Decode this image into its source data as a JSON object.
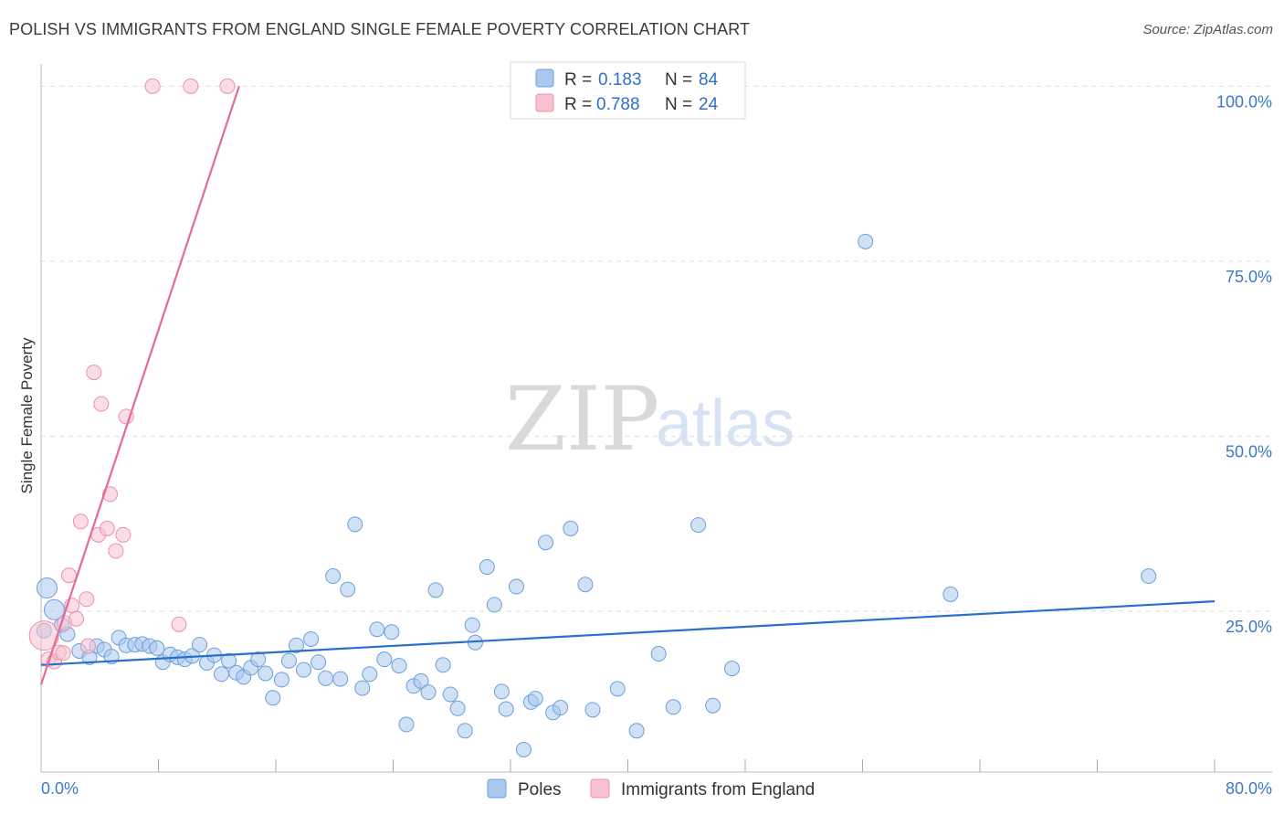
{
  "title": "POLISH VS IMMIGRANTS FROM ENGLAND SINGLE FEMALE POVERTY CORRELATION CHART",
  "source": "Source: ZipAtlas.com",
  "watermark": {
    "left": "ZIP",
    "right": "atlas"
  },
  "colors": {
    "poles_fill": "#aac8ee",
    "poles_stroke": "#6c9fd9",
    "poles_line": "#2a6fc8",
    "england_fill": "#f7c1d0",
    "england_stroke": "#ec8fab",
    "england_line": "#e8689a",
    "tick_text": "#3d79c8",
    "grid": "#dddddd"
  },
  "legend": {
    "rows": [
      {
        "r_label": "R =",
        "r_value": "0.183",
        "n_label": "N =",
        "n_value": "84"
      },
      {
        "r_label": "R =",
        "r_value": "0.788",
        "n_label": "N =",
        "n_value": "24"
      }
    ]
  },
  "bottom_legend": [
    "Poles",
    "Immigrants from England"
  ],
  "chart_data": {
    "type": "scatter",
    "title": "POLISH VS IMMIGRANTS FROM ENGLAND SINGLE FEMALE POVERTY CORRELATION CHART",
    "xlabel": "",
    "ylabel": "Single Female Poverty",
    "xlim": [
      0,
      80
    ],
    "ylim": [
      2,
      102
    ],
    "x_tick_labels": [
      "0.0%",
      "80.0%"
    ],
    "y_ticks": [
      25,
      50,
      75,
      100
    ],
    "y_tick_labels": [
      "25.0%",
      "50.0%",
      "75.0%",
      "100.0%"
    ],
    "grid": true,
    "series": [
      {
        "name": "Poles",
        "r": 0.183,
        "n": 84,
        "trend": [
          [
            0,
            17.3
          ],
          [
            80,
            26.4
          ]
        ],
        "points": [
          [
            0.4,
            28.3
          ],
          [
            0.9,
            25.2
          ],
          [
            1.4,
            23.0
          ],
          [
            1.8,
            21.7
          ],
          [
            2.6,
            19.3
          ],
          [
            3.3,
            18.4
          ],
          [
            3.8,
            20.0
          ],
          [
            4.3,
            19.5
          ],
          [
            4.8,
            18.5
          ],
          [
            5.3,
            21.2
          ],
          [
            5.8,
            20.1
          ],
          [
            6.4,
            20.2
          ],
          [
            6.9,
            20.3
          ],
          [
            7.4,
            20.0
          ],
          [
            7.9,
            19.7
          ],
          [
            8.3,
            17.7
          ],
          [
            8.8,
            18.8
          ],
          [
            9.3,
            18.4
          ],
          [
            9.8,
            18.1
          ],
          [
            10.3,
            18.6
          ],
          [
            10.8,
            20.2
          ],
          [
            11.3,
            17.6
          ],
          [
            11.8,
            18.7
          ],
          [
            12.3,
            16.0
          ],
          [
            12.8,
            17.9
          ],
          [
            13.3,
            16.2
          ],
          [
            13.8,
            15.6
          ],
          [
            14.3,
            16.9
          ],
          [
            14.8,
            18.1
          ],
          [
            15.3,
            16.1
          ],
          [
            15.8,
            12.6
          ],
          [
            16.4,
            15.2
          ],
          [
            16.9,
            17.9
          ],
          [
            17.4,
            20.1
          ],
          [
            17.9,
            16.6
          ],
          [
            18.4,
            21.0
          ],
          [
            18.9,
            17.7
          ],
          [
            19.4,
            15.4
          ],
          [
            19.9,
            30.0
          ],
          [
            20.4,
            15.3
          ],
          [
            20.9,
            28.1
          ],
          [
            21.4,
            37.4
          ],
          [
            21.9,
            14.0
          ],
          [
            22.4,
            16.0
          ],
          [
            22.9,
            22.4
          ],
          [
            23.4,
            18.1
          ],
          [
            23.9,
            22.0
          ],
          [
            24.4,
            17.2
          ],
          [
            24.9,
            8.8
          ],
          [
            25.4,
            14.3
          ],
          [
            25.9,
            15.0
          ],
          [
            26.4,
            13.4
          ],
          [
            26.9,
            28.0
          ],
          [
            27.4,
            17.3
          ],
          [
            27.9,
            13.1
          ],
          [
            28.4,
            11.1
          ],
          [
            28.9,
            7.9
          ],
          [
            29.4,
            23.0
          ],
          [
            29.6,
            20.5
          ],
          [
            30.4,
            31.3
          ],
          [
            30.9,
            25.9
          ],
          [
            31.4,
            13.5
          ],
          [
            31.7,
            11.0
          ],
          [
            32.4,
            28.5
          ],
          [
            32.9,
            5.2
          ],
          [
            33.4,
            12.0
          ],
          [
            33.7,
            12.5
          ],
          [
            34.4,
            34.8
          ],
          [
            34.9,
            10.5
          ],
          [
            35.4,
            11.2
          ],
          [
            36.1,
            36.8
          ],
          [
            37.1,
            28.8
          ],
          [
            37.6,
            10.9
          ],
          [
            39.3,
            13.9
          ],
          [
            40.6,
            7.9
          ],
          [
            42.1,
            18.9
          ],
          [
            43.1,
            11.3
          ],
          [
            44.8,
            37.3
          ],
          [
            45.8,
            11.5
          ],
          [
            47.1,
            16.8
          ],
          [
            56.2,
            77.8
          ],
          [
            62.0,
            27.4
          ],
          [
            75.5,
            30.0
          ],
          [
            0.2,
            22.2
          ]
        ]
      },
      {
        "name": "Immigrants from England",
        "r": 0.788,
        "n": 24,
        "trend": [
          [
            0,
            14.5
          ],
          [
            13.5,
            100
          ]
        ],
        "points": [
          [
            0.2,
            21.5
          ],
          [
            0.5,
            18.1
          ],
          [
            0.9,
            17.8
          ],
          [
            1.2,
            19.1
          ],
          [
            1.5,
            19.0
          ],
          [
            1.6,
            23.3
          ],
          [
            1.9,
            30.1
          ],
          [
            2.1,
            25.8
          ],
          [
            2.4,
            23.9
          ],
          [
            2.7,
            37.8
          ],
          [
            3.1,
            26.7
          ],
          [
            3.2,
            20.0
          ],
          [
            3.6,
            59.1
          ],
          [
            3.9,
            35.9
          ],
          [
            4.1,
            54.6
          ],
          [
            4.5,
            36.8
          ],
          [
            4.7,
            41.7
          ],
          [
            5.1,
            33.6
          ],
          [
            5.6,
            35.9
          ],
          [
            5.8,
            52.8
          ],
          [
            7.6,
            100
          ],
          [
            9.4,
            23.1
          ],
          [
            10.2,
            100
          ],
          [
            12.7,
            100
          ]
        ]
      }
    ]
  }
}
